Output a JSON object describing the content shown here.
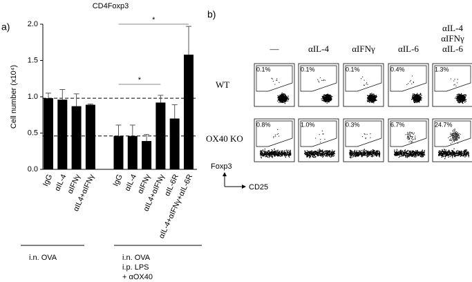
{
  "chart_data": {
    "type": "bar",
    "panel_label": "a)",
    "title": "CD4Foxp3",
    "y_label": "Cell number (x10⁴)",
    "ylim": [
      0,
      2.0
    ],
    "yticks": [
      {
        "value": 0,
        "label": "0.0"
      },
      0.5,
      {
        "value": 1,
        "label": "1.0"
      },
      1.5,
      {
        "value": 2,
        "label": "2.0"
      }
    ],
    "color": "#000000",
    "reference_lines": [
      0.98,
      0.46
    ],
    "annotations": [
      {
        "label": "*"
      },
      {
        "label": "*"
      }
    ],
    "groups": [
      {
        "label": [
          "i.n. OVA"
        ],
        "categories": [
          "IgG",
          "αIL-4",
          "αIFNγ",
          "αIL4+αIFNγ"
        ],
        "values": [
          0.98,
          0.96,
          0.87,
          0.89
        ],
        "errors": [
          0.07,
          0.14,
          0.17,
          0.01
        ]
      },
      {
        "label": [
          "i.n. OVA",
          "i.p. LPS",
          "+ αOX40"
        ],
        "categories": [
          "IgG",
          "αIL-4",
          "αIFNγ",
          "αIL4+αIFNγ",
          "αIL-6R",
          "αIL-4+αIFNγ+αIL-6R"
        ],
        "values": [
          0.46,
          0.46,
          0.39,
          0.92,
          0.7,
          1.58
        ],
        "errors": [
          0.15,
          0.15,
          0.09,
          0.1,
          0.19,
          0.39
        ]
      }
    ]
  },
  "flow": {
    "panel_label": "b)",
    "columns": [
      [
        "—"
      ],
      [
        "αIL-4"
      ],
      [
        "αIFNγ"
      ],
      [
        "αIL-6"
      ],
      [
        "αIL-4",
        "αIFNγ",
        "αIL-6"
      ]
    ],
    "rows": [
      {
        "label": "WT",
        "percents": [
          "0.1%",
          "0.1%",
          "0.1%",
          "0.4%",
          "1.3%"
        ]
      },
      {
        "label": "OX40 KO",
        "percents": [
          "0.8%",
          "1.0%",
          "0.3%",
          "6.7%",
          "24.7%"
        ]
      }
    ],
    "y_axis": "Foxp3",
    "x_axis": "CD25"
  }
}
